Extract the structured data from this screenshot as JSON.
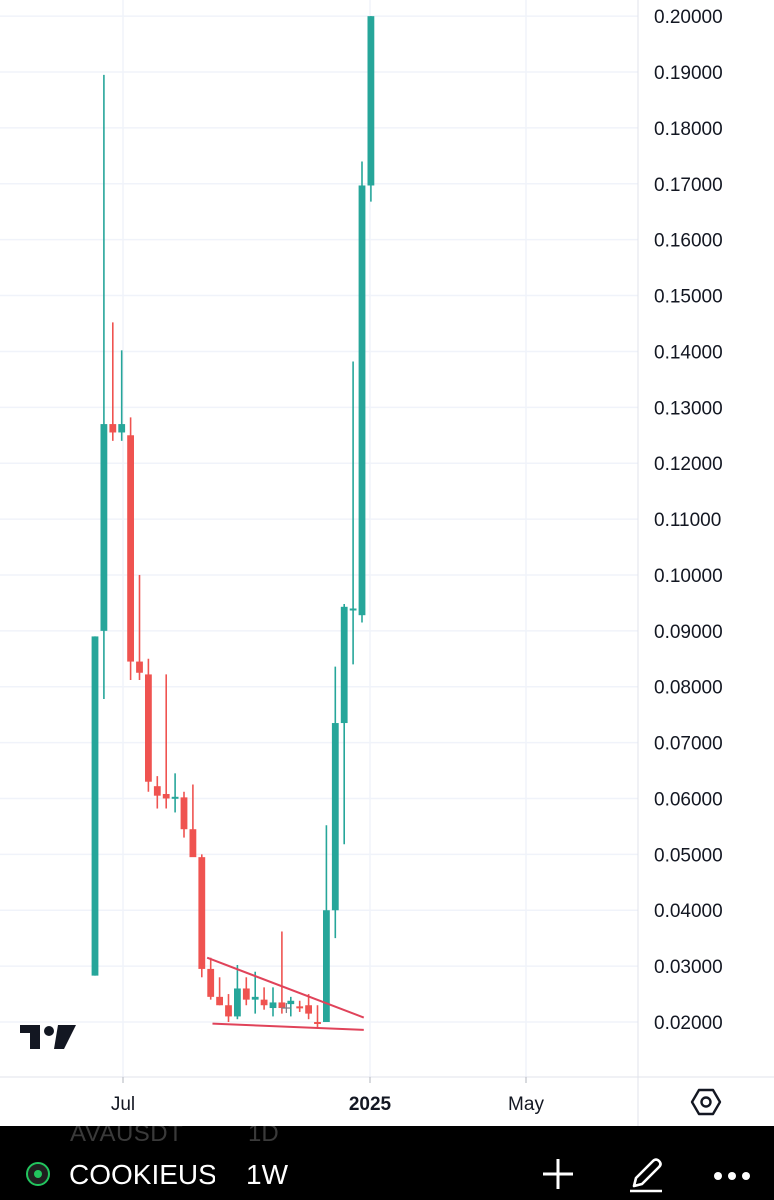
{
  "chart_data": {
    "type": "candlestick",
    "symbol": "COOKIEUS",
    "interval": "1W",
    "ylim": [
      0.015,
      0.2
    ],
    "y_ticks": [
      "0.20000",
      "0.19000",
      "0.18000",
      "0.17000",
      "0.16000",
      "0.15000",
      "0.14000",
      "0.13000",
      "0.12000",
      "0.11000",
      "0.10000",
      "0.09000",
      "0.08000",
      "0.07000",
      "0.06000",
      "0.05000",
      "0.04000",
      "0.03000",
      "0.02000"
    ],
    "x_ticks": [
      {
        "label": "Jul",
        "bold": false
      },
      {
        "label": "2025",
        "bold": true
      },
      {
        "label": "May",
        "bold": false
      }
    ],
    "candles": [
      {
        "o": 0.0283,
        "h": 0.089,
        "l": 0.0283,
        "c": 0.089
      },
      {
        "o": 0.09,
        "h": 0.1895,
        "l": 0.0778,
        "c": 0.127
      },
      {
        "o": 0.127,
        "h": 0.1452,
        "l": 0.124,
        "c": 0.1255
      },
      {
        "o": 0.1255,
        "h": 0.1402,
        "l": 0.124,
        "c": 0.127
      },
      {
        "o": 0.125,
        "h": 0.1282,
        "l": 0.0812,
        "c": 0.0845
      },
      {
        "o": 0.0845,
        "h": 0.1,
        "l": 0.0812,
        "c": 0.0825
      },
      {
        "o": 0.0822,
        "h": 0.085,
        "l": 0.0612,
        "c": 0.063
      },
      {
        "o": 0.0622,
        "h": 0.064,
        "l": 0.0582,
        "c": 0.0605
      },
      {
        "o": 0.0608,
        "h": 0.0822,
        "l": 0.0582,
        "c": 0.06
      },
      {
        "o": 0.06,
        "h": 0.0645,
        "l": 0.0575,
        "c": 0.0603
      },
      {
        "o": 0.0602,
        "h": 0.0612,
        "l": 0.053,
        "c": 0.0545
      },
      {
        "o": 0.0545,
        "h": 0.0625,
        "l": 0.05,
        "c": 0.0495
      },
      {
        "o": 0.0495,
        "h": 0.05,
        "l": 0.028,
        "c": 0.0295
      },
      {
        "o": 0.0295,
        "h": 0.0315,
        "l": 0.024,
        "c": 0.0245
      },
      {
        "o": 0.0245,
        "h": 0.028,
        "l": 0.023,
        "c": 0.023
      },
      {
        "o": 0.023,
        "h": 0.025,
        "l": 0.02,
        "c": 0.021
      },
      {
        "o": 0.021,
        "h": 0.0302,
        "l": 0.0205,
        "c": 0.026
      },
      {
        "o": 0.026,
        "h": 0.028,
        "l": 0.023,
        "c": 0.024
      },
      {
        "o": 0.024,
        "h": 0.029,
        "l": 0.0215,
        "c": 0.0245
      },
      {
        "o": 0.024,
        "h": 0.0262,
        "l": 0.0222,
        "c": 0.023
      },
      {
        "o": 0.0225,
        "h": 0.0262,
        "l": 0.021,
        "c": 0.0235
      },
      {
        "o": 0.0235,
        "h": 0.0362,
        "l": 0.0215,
        "c": 0.0225
      },
      {
        "o": 0.0232,
        "h": 0.0245,
        "l": 0.021,
        "c": 0.0238
      },
      {
        "o": 0.0228,
        "h": 0.0238,
        "l": 0.0218,
        "c": 0.0226
      },
      {
        "o": 0.023,
        "h": 0.025,
        "l": 0.0205,
        "c": 0.0215
      },
      {
        "o": 0.02,
        "h": 0.023,
        "l": 0.019,
        "c": 0.0198
      },
      {
        "o": 0.02,
        "h": 0.0552,
        "l": 0.02,
        "c": 0.04
      },
      {
        "o": 0.04,
        "h": 0.0836,
        "l": 0.035,
        "c": 0.0735
      },
      {
        "o": 0.0735,
        "h": 0.0948,
        "l": 0.0518,
        "c": 0.0943
      },
      {
        "o": 0.094,
        "h": 0.1382,
        "l": 0.084,
        "c": 0.094
      },
      {
        "o": 0.0928,
        "h": 0.174,
        "l": 0.0915,
        "c": 0.1697
      },
      {
        "o": 0.1697,
        "h": 0.2,
        "l": 0.1668,
        "c": 0.2
      }
    ],
    "trendlines": [
      {
        "from": {
          "i": 12.6,
          "v": 0.0315
        },
        "to": {
          "i": 30.2,
          "v": 0.0208
        }
      },
      {
        "from": {
          "i": 13.2,
          "v": 0.0197
        },
        "to": {
          "i": 30.2,
          "v": 0.0186
        }
      }
    ],
    "colors": {
      "up": "#26a69a",
      "down": "#ef5350",
      "grid": "#f0f3fa",
      "axis_text": "#131722",
      "trendline": "#e0435a",
      "bottom_bar": "#000000"
    }
  },
  "bottom_bar": {
    "ghost_symbol": "AVAUSDT",
    "ghost_interval": "1D",
    "symbol": "COOKIEUS",
    "interval": "1W",
    "icons": {
      "symbol": "cookie-coin-icon",
      "add": "plus-icon",
      "draw": "pencil-icon",
      "more": "more-dots-icon"
    }
  },
  "settings_icon": "hexagon-settings-icon",
  "logo": "tradingview-logo"
}
